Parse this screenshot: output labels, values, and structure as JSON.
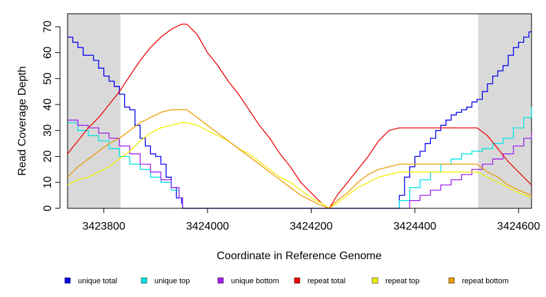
{
  "chart_data": {
    "type": "line",
    "title": "",
    "xlabel": "Coordinate in Reference Genome",
    "ylabel": "Read Coverage Depth",
    "xlim": [
      3423730,
      3424625
    ],
    "ylim": [
      0,
      75
    ],
    "x_ticks": [
      3423800,
      3424000,
      3424200,
      3424400,
      3424600
    ],
    "y_ticks": [
      0,
      10,
      20,
      30,
      40,
      50,
      60,
      70
    ],
    "shaded_regions": [
      [
        3423730,
        3423832
      ],
      [
        3424522,
        3424625
      ]
    ],
    "legend_position": "bottom",
    "series": [
      {
        "name": "unique total",
        "color": "#0000ee",
        "step": true,
        "x": [
          3423730,
          3423740,
          3423750,
          3423760,
          3423770,
          3423780,
          3423790,
          3423800,
          3423810,
          3423820,
          3423830,
          3423840,
          3423850,
          3423860,
          3423870,
          3423880,
          3423890,
          3423900,
          3423910,
          3423920,
          3423930,
          3423940,
          3423950,
          3423952,
          3424000,
          3424100,
          3424200,
          3424250,
          3424300,
          3424350,
          3424365,
          3424370,
          3424380,
          3424390,
          3424400,
          3424410,
          3424420,
          3424430,
          3424440,
          3424450,
          3424460,
          3424470,
          3424480,
          3424490,
          3424500,
          3424510,
          3424520,
          3424530,
          3424540,
          3424550,
          3424560,
          3424570,
          3424580,
          3424590,
          3424600,
          3424610,
          3424620,
          3424625
        ],
        "y": [
          66,
          64,
          62,
          59,
          59,
          57,
          54,
          51,
          49,
          47,
          44,
          39,
          38,
          32,
          27,
          24,
          21,
          20,
          17,
          12,
          8,
          4,
          2,
          0,
          0,
          0,
          0,
          0,
          0,
          0,
          0,
          5,
          12,
          16,
          20,
          22,
          25,
          27,
          30,
          32,
          34,
          36,
          37,
          38,
          39,
          41,
          42,
          45,
          48,
          51,
          53,
          55,
          59,
          62,
          64,
          66,
          68,
          68
        ]
      },
      {
        "name": "unique top",
        "color": "#00e5e5",
        "step": true,
        "x": [
          3423730,
          3423750,
          3423770,
          3423790,
          3423810,
          3423830,
          3423850,
          3423870,
          3423890,
          3423910,
          3423930,
          3423945,
          3423952,
          3424000,
          3424100,
          3424200,
          3424300,
          3424365,
          3424370,
          3424390,
          3424410,
          3424430,
          3424450,
          3424470,
          3424490,
          3424510,
          3424530,
          3424550,
          3424570,
          3424590,
          3424610,
          3424625
        ],
        "y": [
          33,
          30,
          28,
          26,
          23,
          20,
          17,
          15,
          12,
          10,
          7,
          4,
          0,
          0,
          0,
          0,
          0,
          0,
          3,
          8,
          11,
          14,
          17,
          19,
          21,
          22,
          23,
          25,
          27,
          31,
          35,
          39
        ]
      },
      {
        "name": "unique bottom",
        "color": "#a020f0",
        "step": true,
        "x": [
          3423730,
          3423750,
          3423770,
          3423790,
          3423810,
          3423830,
          3423850,
          3423870,
          3423890,
          3423910,
          3423930,
          3423945,
          3423952,
          3424000,
          3424100,
          3424200,
          3424300,
          3424380,
          3424390,
          3424410,
          3424430,
          3424450,
          3424470,
          3424490,
          3424510,
          3424530,
          3424550,
          3424570,
          3424590,
          3424610,
          3424625
        ],
        "y": [
          34,
          32,
          31,
          29,
          27,
          24,
          21,
          17,
          14,
          11,
          8,
          4,
          0,
          0,
          0,
          0,
          0,
          0,
          3,
          5,
          7,
          9,
          11,
          13,
          15,
          17,
          19,
          21,
          24,
          27,
          29
        ]
      },
      {
        "name": "repeat total",
        "color": "#ee0000",
        "step": false,
        "x": [
          3423730,
          3423750,
          3423770,
          3423790,
          3423810,
          3423830,
          3423850,
          3423870,
          3423890,
          3423910,
          3423930,
          3423950,
          3423960,
          3423980,
          3424000,
          3424020,
          3424040,
          3424060,
          3424080,
          3424100,
          3424120,
          3424140,
          3424160,
          3424180,
          3424200,
          3424220,
          3424235,
          3424250,
          3424270,
          3424290,
          3424310,
          3424330,
          3424350,
          3424370,
          3424380,
          3424400,
          3424450,
          3424500,
          3424520,
          3424540,
          3424560,
          3424580,
          3424600,
          3424625
        ],
        "y": [
          21,
          26,
          31,
          35,
          40,
          45,
          51,
          57,
          62,
          66,
          69,
          71,
          71,
          67,
          60,
          55,
          49,
          44,
          38,
          32,
          27,
          21,
          16,
          10,
          6,
          2,
          0,
          5,
          10,
          15,
          20,
          26,
          30,
          31,
          31,
          31,
          31,
          31,
          31,
          28,
          23,
          18,
          14,
          9
        ]
      },
      {
        "name": "repeat top",
        "color": "#eeee00",
        "step": false,
        "x": [
          3423730,
          3423750,
          3423770,
          3423790,
          3423810,
          3423830,
          3423850,
          3423870,
          3423890,
          3423910,
          3423930,
          3423950,
          3423960,
          3423980,
          3424000,
          3424020,
          3424040,
          3424060,
          3424080,
          3424100,
          3424120,
          3424140,
          3424160,
          3424180,
          3424200,
          3424220,
          3424235,
          3424250,
          3424270,
          3424290,
          3424310,
          3424330,
          3424350,
          3424370,
          3424380,
          3424400,
          3424450,
          3424500,
          3424520,
          3424540,
          3424560,
          3424580,
          3424600,
          3424625
        ],
        "y": [
          9,
          11,
          12,
          14,
          16,
          19,
          22,
          26,
          29,
          31,
          32,
          33,
          33,
          32,
          30,
          28,
          26,
          23,
          21,
          18,
          15,
          12,
          10,
          7,
          4,
          2,
          0,
          2,
          5,
          8,
          10,
          12,
          13,
          14,
          14,
          14,
          14,
          14,
          14,
          12,
          10,
          8,
          6,
          4
        ]
      },
      {
        "name": "repeat bottom",
        "color": "#ee9a00",
        "step": false,
        "x": [
          3423730,
          3423750,
          3423770,
          3423790,
          3423810,
          3423830,
          3423850,
          3423870,
          3423890,
          3423910,
          3423930,
          3423950,
          3423960,
          3423980,
          3424000,
          3424020,
          3424040,
          3424060,
          3424080,
          3424100,
          3424120,
          3424140,
          3424160,
          3424180,
          3424200,
          3424220,
          3424235,
          3424250,
          3424270,
          3424290,
          3424310,
          3424330,
          3424350,
          3424370,
          3424380,
          3424400,
          3424450,
          3424500,
          3424520,
          3424540,
          3424560,
          3424580,
          3424600,
          3424625
        ],
        "y": [
          12,
          16,
          19,
          22,
          25,
          27,
          30,
          33,
          35,
          37,
          38,
          38,
          38,
          35,
          32,
          29,
          26,
          23,
          20,
          17,
          14,
          11,
          8,
          5,
          3,
          1,
          0,
          3,
          6,
          10,
          13,
          15,
          16,
          17,
          17,
          17,
          17,
          17,
          17,
          14,
          12,
          9,
          7,
          5
        ]
      }
    ]
  }
}
